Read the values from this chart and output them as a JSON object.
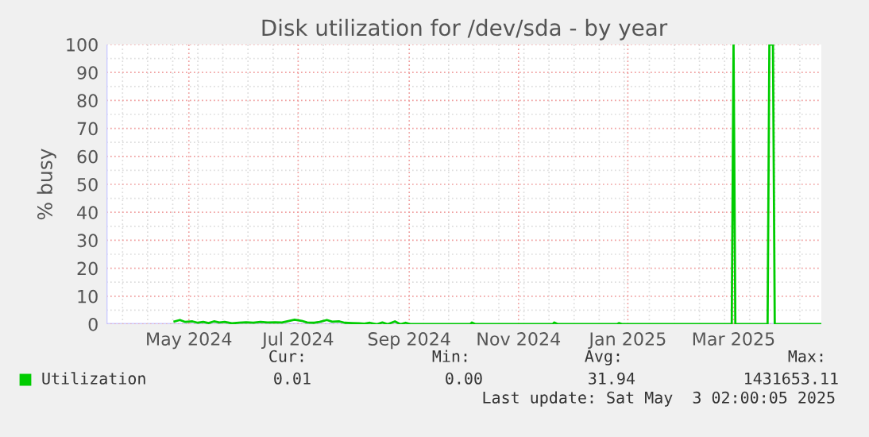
{
  "chart_data": {
    "type": "line",
    "title": "Disk utilization for /dev/sda - by year",
    "ylabel": "% busy",
    "xlim": [
      "2024-03-16",
      "2025-04-19"
    ],
    "xticks": [
      {
        "value": "2024-05-01",
        "label": "May 2024"
      },
      {
        "value": "2024-07-01",
        "label": "Jul 2024"
      },
      {
        "value": "2024-09-01",
        "label": "Sep 2024"
      },
      {
        "value": "2024-11-01",
        "label": "Nov 2024"
      },
      {
        "value": "2025-01-01",
        "label": "Jan 2025"
      },
      {
        "value": "2025-03-01",
        "label": "Mar 2025"
      }
    ],
    "ylim": [
      0,
      100
    ],
    "yticks": [
      0,
      10,
      20,
      30,
      40,
      50,
      60,
      70,
      80,
      90,
      100
    ],
    "grid": true,
    "legend": "bottom left",
    "series": [
      {
        "name": "Utilization",
        "color": "#00cc00",
        "x": [
          "2024-04-23",
          "2024-04-26",
          "2024-04-29",
          "2024-05-03",
          "2024-05-06",
          "2024-05-09",
          "2024-05-12",
          "2024-05-15",
          "2024-05-18",
          "2024-05-21",
          "2024-05-25",
          "2024-05-29",
          "2024-06-02",
          "2024-06-06",
          "2024-06-10",
          "2024-06-14",
          "2024-06-18",
          "2024-06-22",
          "2024-06-26",
          "2024-06-29",
          "2024-07-03",
          "2024-07-06",
          "2024-07-10",
          "2024-07-13",
          "2024-07-17",
          "2024-07-20",
          "2024-07-24",
          "2024-07-27",
          "2024-07-31",
          "2024-08-04",
          "2024-08-07",
          "2024-08-10",
          "2024-08-14",
          "2024-08-17",
          "2024-08-20",
          "2024-08-24",
          "2024-08-27",
          "2024-08-30",
          "2024-09-02",
          "2024-10-05",
          "2024-10-06",
          "2024-10-08",
          "2024-11-20",
          "2024-11-21",
          "2024-11-23",
          "2024-12-26",
          "2024-12-27",
          "2024-12-29",
          "2025-02-28",
          "2025-03-01",
          "2025-03-02",
          "2025-03-20",
          "2025-03-21",
          "2025-03-23",
          "2025-03-24",
          "2025-04-19"
        ],
        "values": [
          1.0,
          1.5,
          0.8,
          1.0,
          0.5,
          0.8,
          0.4,
          1.0,
          0.6,
          0.8,
          0.3,
          0.5,
          0.7,
          0.5,
          0.8,
          0.6,
          0.7,
          0.6,
          1.2,
          1.6,
          1.2,
          0.6,
          0.5,
          0.8,
          1.5,
          0.9,
          1.0,
          0.5,
          0.4,
          0.3,
          0.2,
          0.5,
          0,
          0.6,
          0,
          1.0,
          0,
          0.5,
          0,
          0,
          0.6,
          0,
          0,
          0.6,
          0,
          0,
          0.4,
          0,
          0,
          100,
          0,
          0,
          100,
          100,
          0,
          0
        ]
      }
    ],
    "annotations": [
      "Cur:",
      "0.01",
      "Min:",
      "0.00",
      "Avg:",
      "31.94",
      "Max:",
      "1431653.11",
      "Last update: Sat May  3 02:00:05 2025"
    ]
  }
}
